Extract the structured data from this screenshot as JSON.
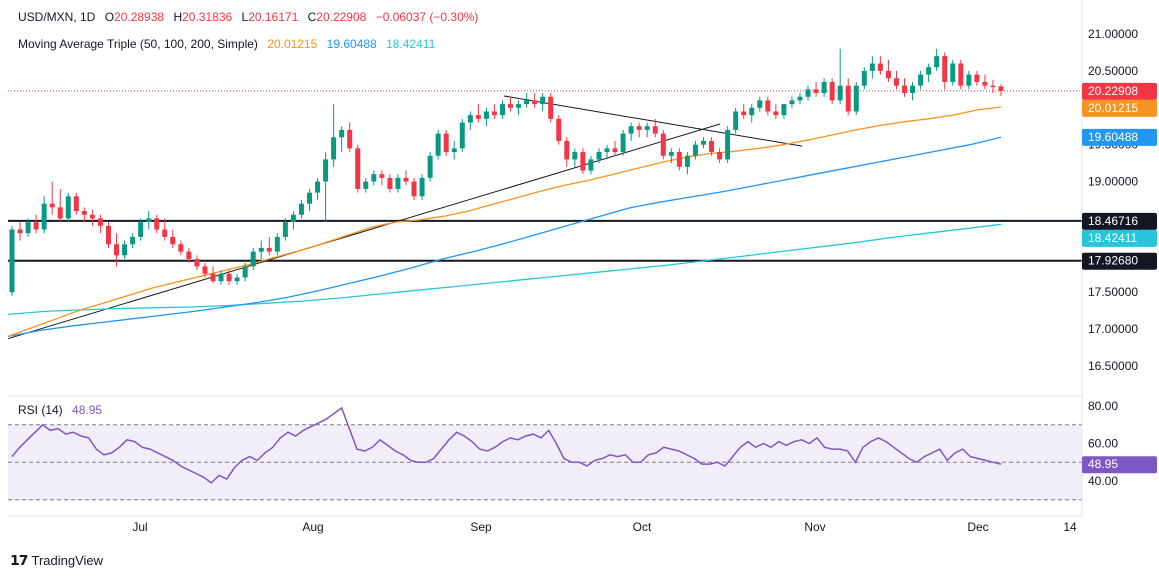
{
  "header": {
    "symbol": "USD/MXN, 1D",
    "open_label": "O",
    "open": "20.28938",
    "high_label": "H",
    "high": "20.31836",
    "low_label": "L",
    "low": "20.16171",
    "close_label": "C",
    "close": "20.22908",
    "change": "−0.06037 (−0.30%)",
    "ma_title": "Moving Average Triple (50, 100, 200, Simple)",
    "ma50": "20.01215",
    "ma100": "19.60488",
    "ma200": "18.42411"
  },
  "rsi_header": {
    "title": "RSI (14)",
    "value": "48.95"
  },
  "footer": {
    "brand": "TradingView"
  },
  "colors": {
    "up": "#089981",
    "down": "#f23645",
    "ma50": "#f7931e",
    "ma100": "#2196f3",
    "ma200": "#26c6da",
    "rsi": "#7e57c2",
    "rsi_band": "#ede7f6",
    "current": "#f23645"
  },
  "chart_data": [
    {
      "type": "candlestick",
      "title": "USD/MXN, 1D",
      "x_labels": [
        "Jul",
        "Aug",
        "Sep",
        "Oct",
        "Nov",
        "Dec",
        "14"
      ],
      "ylim": [
        16.5,
        21.0
      ],
      "y_ticks": [
        "21.00000",
        "20.50000",
        "19.50000",
        "19.00000",
        "17.50000",
        "17.00000",
        "16.50000"
      ],
      "price_tags": [
        {
          "value": 20.22908,
          "label": "20.22908",
          "color": "#f23645"
        },
        {
          "value": 20.01215,
          "label": "20.01215",
          "color": "#f7931e"
        },
        {
          "value": 19.60488,
          "label": "19.60488",
          "color": "#2196f3"
        },
        {
          "value": 18.46716,
          "label": "18.46716",
          "color": "#131722"
        },
        {
          "value": 18.42411,
          "label": "18.42411",
          "color": "#26c6da"
        },
        {
          "value": 17.9268,
          "label": "17.92680",
          "color": "#131722"
        }
      ],
      "horizontal_levels": [
        18.46716,
        17.9268
      ],
      "last_close": 20.22908,
      "candles": [
        [
          17.5,
          18.4,
          17.45,
          18.35
        ],
        [
          18.35,
          18.45,
          18.2,
          18.3
        ],
        [
          18.3,
          18.5,
          18.25,
          18.45
        ],
        [
          18.45,
          18.55,
          18.3,
          18.35
        ],
        [
          18.35,
          18.8,
          18.3,
          18.7
        ],
        [
          18.7,
          19.0,
          18.55,
          18.65
        ],
        [
          18.65,
          18.9,
          18.45,
          18.5
        ],
        [
          18.5,
          18.85,
          18.45,
          18.8
        ],
        [
          18.8,
          18.85,
          18.55,
          18.6
        ],
        [
          18.6,
          18.65,
          18.45,
          18.55
        ],
        [
          18.55,
          18.62,
          18.4,
          18.5
        ],
        [
          18.5,
          18.55,
          18.3,
          18.4
        ],
        [
          18.4,
          18.45,
          18.1,
          18.15
        ],
        [
          18.15,
          18.3,
          17.85,
          18.0
        ],
        [
          18.0,
          18.2,
          17.95,
          18.15
        ],
        [
          18.15,
          18.3,
          18.1,
          18.25
        ],
        [
          18.25,
          18.5,
          18.2,
          18.45
        ],
        [
          18.45,
          18.6,
          18.35,
          18.5
        ],
        [
          18.5,
          18.55,
          18.3,
          18.35
        ],
        [
          18.35,
          18.5,
          18.2,
          18.25
        ],
        [
          18.25,
          18.35,
          18.1,
          18.15
        ],
        [
          18.15,
          18.2,
          18.0,
          18.05
        ],
        [
          18.05,
          18.1,
          17.9,
          17.95
        ],
        [
          17.95,
          18.0,
          17.8,
          17.85
        ],
        [
          17.85,
          17.9,
          17.7,
          17.75
        ],
        [
          17.75,
          17.85,
          17.62,
          17.65
        ],
        [
          17.65,
          17.8,
          17.6,
          17.75
        ],
        [
          17.75,
          17.8,
          17.6,
          17.65
        ],
        [
          17.65,
          17.75,
          17.6,
          17.7
        ],
        [
          17.7,
          17.9,
          17.65,
          17.85
        ],
        [
          17.85,
          18.1,
          17.8,
          18.05
        ],
        [
          18.05,
          18.2,
          17.95,
          18.1
        ],
        [
          18.1,
          18.25,
          18.0,
          18.05
        ],
        [
          18.05,
          18.3,
          18.0,
          18.25
        ],
        [
          18.25,
          18.5,
          18.2,
          18.45
        ],
        [
          18.45,
          18.6,
          18.35,
          18.55
        ],
        [
          18.55,
          18.75,
          18.5,
          18.7
        ],
        [
          18.7,
          18.9,
          18.6,
          18.85
        ],
        [
          18.85,
          19.05,
          18.75,
          19.0
        ],
        [
          19.0,
          19.4,
          18.45,
          19.3
        ],
        [
          19.3,
          20.05,
          19.2,
          19.6
        ],
        [
          19.6,
          19.75,
          19.4,
          19.7
        ],
        [
          19.7,
          19.8,
          19.4,
          19.45
        ],
        [
          19.45,
          19.5,
          18.85,
          18.9
        ],
        [
          18.9,
          19.05,
          18.85,
          19.0
        ],
        [
          19.0,
          19.15,
          18.95,
          19.1
        ],
        [
          19.1,
          19.15,
          18.95,
          19.05
        ],
        [
          19.05,
          19.1,
          18.85,
          18.9
        ],
        [
          18.9,
          19.1,
          18.85,
          19.05
        ],
        [
          19.05,
          19.15,
          18.95,
          19.0
        ],
        [
          19.0,
          19.05,
          18.75,
          18.8
        ],
        [
          18.8,
          19.1,
          18.75,
          19.05
        ],
        [
          19.05,
          19.4,
          19.0,
          19.35
        ],
        [
          19.35,
          19.7,
          19.3,
          19.65
        ],
        [
          19.65,
          19.7,
          19.35,
          19.4
        ],
        [
          19.4,
          19.55,
          19.3,
          19.45
        ],
        [
          19.45,
          19.85,
          19.4,
          19.8
        ],
        [
          19.8,
          19.95,
          19.7,
          19.9
        ],
        [
          19.9,
          20.05,
          19.8,
          19.85
        ],
        [
          19.85,
          20.0,
          19.75,
          19.95
        ],
        [
          19.95,
          20.05,
          19.85,
          19.9
        ],
        [
          19.9,
          20.1,
          19.85,
          20.05
        ],
        [
          20.05,
          20.15,
          19.95,
          20.0
        ],
        [
          20.0,
          20.1,
          19.9,
          20.05
        ],
        [
          20.05,
          20.2,
          20.0,
          20.1
        ],
        [
          20.1,
          20.2,
          20.0,
          20.05
        ],
        [
          20.05,
          20.2,
          19.95,
          20.15
        ],
        [
          20.15,
          20.2,
          19.8,
          19.85
        ],
        [
          19.85,
          19.9,
          19.5,
          19.55
        ],
        [
          19.55,
          19.6,
          19.2,
          19.3
        ],
        [
          19.3,
          19.45,
          19.2,
          19.4
        ],
        [
          19.4,
          19.45,
          19.1,
          19.15
        ],
        [
          19.15,
          19.35,
          19.1,
          19.3
        ],
        [
          19.3,
          19.45,
          19.25,
          19.4
        ],
        [
          19.4,
          19.5,
          19.3,
          19.45
        ],
        [
          19.45,
          19.55,
          19.35,
          19.4
        ],
        [
          19.4,
          19.7,
          19.35,
          19.65
        ],
        [
          19.65,
          19.8,
          19.55,
          19.75
        ],
        [
          19.75,
          19.8,
          19.6,
          19.7
        ],
        [
          19.7,
          19.8,
          19.6,
          19.75
        ],
        [
          19.75,
          19.85,
          19.6,
          19.65
        ],
        [
          19.65,
          19.7,
          19.3,
          19.35
        ],
        [
          19.35,
          19.45,
          19.25,
          19.4
        ],
        [
          19.4,
          19.45,
          19.15,
          19.2
        ],
        [
          19.2,
          19.4,
          19.1,
          19.35
        ],
        [
          19.35,
          19.55,
          19.3,
          19.5
        ],
        [
          19.5,
          19.6,
          19.45,
          19.55
        ],
        [
          19.55,
          19.6,
          19.35,
          19.4
        ],
        [
          19.4,
          19.45,
          19.25,
          19.3
        ],
        [
          19.3,
          19.75,
          19.25,
          19.7
        ],
        [
          19.7,
          20.0,
          19.65,
          19.95
        ],
        [
          19.95,
          20.05,
          19.85,
          19.9
        ],
        [
          19.9,
          20.05,
          19.8,
          20.0
        ],
        [
          20.0,
          20.15,
          19.95,
          20.1
        ],
        [
          20.1,
          20.15,
          19.9,
          19.95
        ],
        [
          19.95,
          20.05,
          19.85,
          19.9
        ],
        [
          19.9,
          20.05,
          19.85,
          20.05
        ],
        [
          20.05,
          20.15,
          20.0,
          20.1
        ],
        [
          20.1,
          20.2,
          20.05,
          20.15
        ],
        [
          20.15,
          20.3,
          20.1,
          20.25
        ],
        [
          20.25,
          20.35,
          20.15,
          20.2
        ],
        [
          20.2,
          20.4,
          20.15,
          20.35
        ],
        [
          20.35,
          20.4,
          20.05,
          20.1
        ],
        [
          20.1,
          20.8,
          20.05,
          20.3
        ],
        [
          20.3,
          20.4,
          19.9,
          19.95
        ],
        [
          19.95,
          20.35,
          19.9,
          20.3
        ],
        [
          20.3,
          20.55,
          20.25,
          20.5
        ],
        [
          20.5,
          20.7,
          20.4,
          20.6
        ],
        [
          20.6,
          20.7,
          20.45,
          20.5
        ],
        [
          20.5,
          20.65,
          20.35,
          20.4
        ],
        [
          20.4,
          20.5,
          20.25,
          20.3
        ],
        [
          20.3,
          20.4,
          20.15,
          20.2
        ],
        [
          20.2,
          20.35,
          20.1,
          20.3
        ],
        [
          20.3,
          20.5,
          20.25,
          20.45
        ],
        [
          20.45,
          20.6,
          20.35,
          20.55
        ],
        [
          20.55,
          20.8,
          20.5,
          20.7
        ],
        [
          20.7,
          20.75,
          20.25,
          20.35
        ],
        [
          20.35,
          20.65,
          20.3,
          20.6
        ],
        [
          20.6,
          20.65,
          20.25,
          20.3
        ],
        [
          20.3,
          20.5,
          20.25,
          20.45
        ],
        [
          20.45,
          20.5,
          20.3,
          20.35
        ],
        [
          20.35,
          20.45,
          20.25,
          20.3
        ],
        [
          20.3,
          20.38,
          20.2,
          20.28
        ],
        [
          20.29,
          20.32,
          20.16,
          20.23
        ]
      ],
      "ma50": [
        16.9,
        17.02,
        17.14,
        17.26,
        17.36,
        17.46,
        17.56,
        17.64,
        17.72,
        17.8,
        17.88,
        17.97,
        18.06,
        18.16,
        18.27,
        18.38,
        18.45,
        18.48,
        18.53,
        18.6,
        18.69,
        18.78,
        18.87,
        18.95,
        19.02,
        19.1,
        19.18,
        19.26,
        19.33,
        19.38,
        19.41,
        19.45,
        19.5,
        19.56,
        19.63,
        19.7,
        19.76,
        19.81,
        19.85,
        19.9,
        19.97,
        20.01
      ],
      "ma100": [
        16.9,
        16.98,
        17.04,
        17.09,
        17.14,
        17.19,
        17.24,
        17.3,
        17.36,
        17.43,
        17.52,
        17.62,
        17.72,
        17.83,
        17.95,
        18.05,
        18.16,
        18.28,
        18.4,
        18.52,
        18.64,
        18.72,
        18.79,
        18.86,
        18.94,
        19.02,
        19.1,
        19.18,
        19.26,
        19.34,
        19.42,
        19.5,
        19.6
      ],
      "ma200": [
        17.2,
        17.24,
        17.26,
        17.28,
        17.29,
        17.3,
        17.32,
        17.35,
        17.38,
        17.42,
        17.47,
        17.52,
        17.57,
        17.62,
        17.67,
        17.72,
        17.77,
        17.82,
        17.87,
        17.93,
        17.99,
        18.05,
        18.11,
        18.17,
        18.24,
        18.3,
        18.36,
        18.42
      ]
    },
    {
      "type": "line",
      "title": "RSI (14)",
      "ylim": [
        30,
        80
      ],
      "y_ticks": [
        "80.00",
        "60.00",
        "40.00"
      ],
      "bands": [
        70,
        50,
        30
      ],
      "last_value": 48.95,
      "last_label": "48.95",
      "values": [
        53,
        58,
        62,
        66,
        70,
        67,
        68,
        65,
        66,
        64,
        63,
        57,
        54,
        55,
        58,
        62,
        61,
        58,
        57,
        55,
        53,
        51,
        48,
        46,
        44,
        42,
        39,
        43,
        41,
        47,
        51,
        53,
        51,
        55,
        58,
        63,
        66,
        64,
        67,
        69,
        71,
        73,
        76,
        79,
        68,
        57,
        56,
        58,
        62,
        59,
        56,
        54,
        51,
        50,
        50,
        52,
        57,
        62,
        66,
        64,
        61,
        57,
        56,
        58,
        61,
        63,
        62,
        64,
        65,
        63,
        67,
        60,
        52,
        50,
        50,
        48,
        51,
        52,
        54,
        53,
        54,
        50,
        50,
        54,
        55,
        58,
        57,
        56,
        54,
        52,
        49,
        49,
        50,
        48,
        53,
        58,
        61,
        58,
        60,
        58,
        61,
        59,
        61,
        62,
        60,
        63,
        58,
        57,
        57,
        56,
        50,
        58,
        61,
        63,
        61,
        58,
        55,
        52,
        50,
        53,
        55,
        57,
        51,
        55,
        57,
        53,
        52,
        51,
        50,
        49
      ]
    }
  ]
}
